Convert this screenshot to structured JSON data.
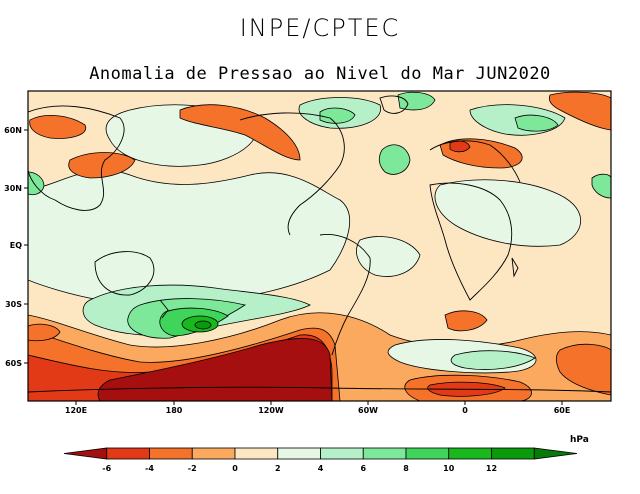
{
  "header": {
    "organization": "INPE/CPTEC",
    "subtitle": "Anomalia de Pressao ao Nivel do Mar JUN2020"
  },
  "map": {
    "lat_labels": [
      "60N",
      "30N",
      "EQ",
      "30S",
      "60S"
    ],
    "lon_labels": [
      "120E",
      "180",
      "120W",
      "60W",
      "0",
      "60E"
    ],
    "coastline_color": "#000000",
    "contour_color": "#000000"
  },
  "legend": {
    "unit": "hPa",
    "ticks": [
      "-6",
      "-4",
      "-2",
      "0",
      "2",
      "4",
      "6",
      "8",
      "10",
      "12"
    ],
    "colors": [
      "#a50f0f",
      "#e23a17",
      "#f4722a",
      "#fba95f",
      "#fde6c2",
      "#e6f7e6",
      "#b6f0c8",
      "#7ee89a",
      "#3fd45a",
      "#18b81e",
      "#0b9a0b",
      "#087a0a"
    ]
  }
}
